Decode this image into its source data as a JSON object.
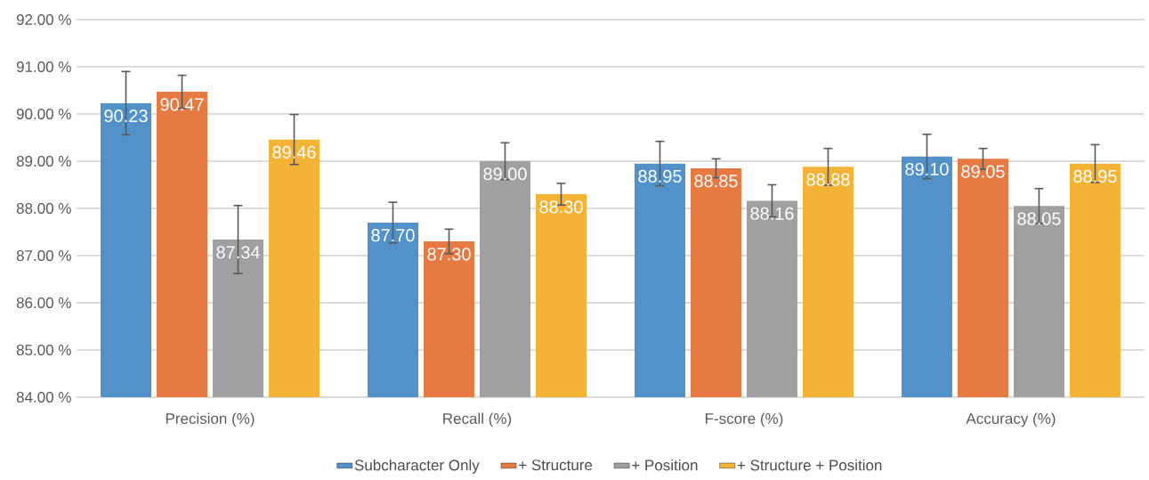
{
  "chart_data": {
    "type": "bar",
    "categories": [
      "Precision (%)",
      "Recall  (%)",
      "F-score  (%)",
      "Accuracy  (%)"
    ],
    "series": [
      {
        "name": "Subcharacter Only",
        "color": "#5292c8",
        "values": [
          90.23,
          87.7,
          88.95,
          89.1
        ],
        "value_labels": [
          "90.23",
          "87.70",
          "88.95",
          "89.10"
        ],
        "errors": [
          0.67,
          0.43,
          0.47,
          0.47
        ]
      },
      {
        "name": "+ Structure",
        "color": "#e57a42",
        "values": [
          90.47,
          87.3,
          88.85,
          89.05
        ],
        "value_labels": [
          "90.47",
          "87.30",
          "88.85",
          "89.05"
        ],
        "errors": [
          0.35,
          0.26,
          0.2,
          0.22
        ]
      },
      {
        "name": "+ Position",
        "color": "#a0a0a3",
        "values": [
          87.34,
          89.0,
          88.16,
          88.05
        ],
        "value_labels": [
          "87.34",
          "89.00",
          "88.16",
          "88.05"
        ],
        "errors": [
          0.72,
          0.39,
          0.34,
          0.37
        ]
      },
      {
        "name": "+ Structure + Position",
        "color": "#f3b336",
        "values": [
          89.46,
          88.3,
          88.88,
          88.95
        ],
        "value_labels": [
          "89.46",
          "88.30",
          "88.88",
          "88.95"
        ],
        "errors": [
          0.53,
          0.23,
          0.39,
          0.4
        ]
      }
    ],
    "ylim": [
      84,
      92
    ],
    "yticks": [
      {
        "value": 84,
        "label": "84.00 %"
      },
      {
        "value": 85,
        "label": "85.00 %"
      },
      {
        "value": 86,
        "label": "86.00 %"
      },
      {
        "value": 87,
        "label": "87.00 %"
      },
      {
        "value": 88,
        "label": "88.00 %"
      },
      {
        "value": 89,
        "label": "89.00 %"
      },
      {
        "value": 90,
        "label": "90.00 %"
      },
      {
        "value": 91,
        "label": "91.00 %"
      },
      {
        "value": 92,
        "label": "92.00 %"
      }
    ],
    "grid": "y",
    "legend": "bottom"
  }
}
